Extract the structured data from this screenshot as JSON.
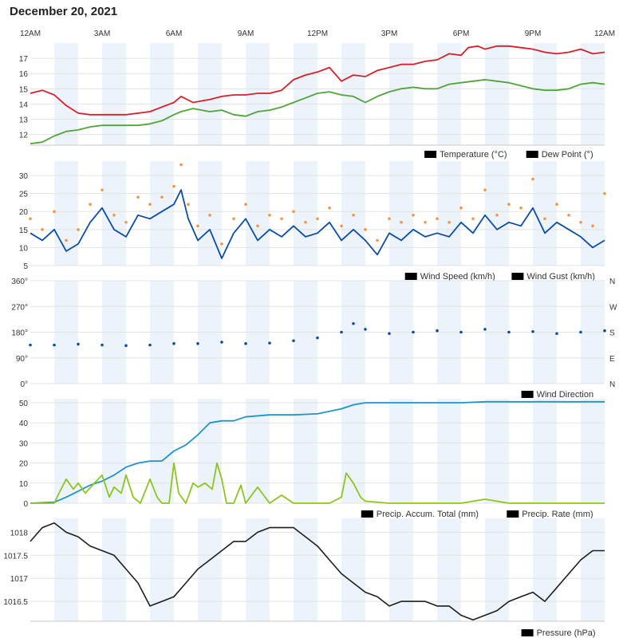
{
  "page": {
    "title": "December 20, 2021"
  },
  "time_axis": {
    "labels": [
      "12AM",
      "3AM",
      "6AM",
      "9AM",
      "12PM",
      "3PM",
      "6PM",
      "9PM",
      "12AM"
    ]
  },
  "colors": {
    "temperature": "#d7202a",
    "dew_point": "#4fa43a",
    "wind_speed": "#0b4ea2",
    "wind_gust": "#f59442",
    "wind_direction": "#0b4ea2",
    "precip_total": "#1f94c7",
    "precip_rate": "#8dc51f",
    "pressure": "#1e1e1e",
    "band": "#edf3fa",
    "grid": "#e3e3e3"
  },
  "chart_data": [
    {
      "type": "line",
      "x_unit": "hours",
      "ylim": [
        11.3,
        18.0
      ],
      "y_ticks": [
        "12",
        "13",
        "14",
        "15",
        "16",
        "17"
      ],
      "series": [
        {
          "name": "Temperature (°C)",
          "x": [
            0,
            0.5,
            1,
            1.5,
            2,
            2.5,
            3,
            4,
            5,
            5.5,
            6,
            6.3,
            6.8,
            7.5,
            8,
            8.5,
            9,
            9.5,
            10,
            10.5,
            11,
            11.5,
            12,
            12.5,
            13,
            13.5,
            14,
            14.5,
            15,
            15.5,
            16,
            16.5,
            17,
            17.5,
            18,
            18.3,
            18.7,
            19,
            19.5,
            20,
            20.5,
            21,
            21.5,
            22,
            22.5,
            23,
            23.5,
            24
          ],
          "values": [
            14.7,
            14.9,
            14.6,
            13.9,
            13.4,
            13.3,
            13.3,
            13.3,
            13.5,
            13.8,
            14.1,
            14.5,
            14.1,
            14.3,
            14.5,
            14.6,
            14.6,
            14.7,
            14.7,
            14.9,
            15.6,
            15.9,
            16.1,
            16.4,
            15.5,
            15.9,
            15.8,
            16.2,
            16.4,
            16.6,
            16.6,
            16.8,
            16.9,
            17.3,
            17.2,
            17.7,
            17.8,
            17.6,
            17.8,
            17.8,
            17.7,
            17.6,
            17.4,
            17.3,
            17.4,
            17.6,
            17.3,
            17.4
          ]
        },
        {
          "name": "Dew Point (°)",
          "x": [
            0,
            0.5,
            1,
            1.5,
            2,
            2.5,
            3,
            3.5,
            4,
            4.5,
            5,
            5.5,
            6,
            6.3,
            6.8,
            7.5,
            8,
            8.5,
            9,
            9.5,
            10,
            10.5,
            11,
            11.5,
            12,
            12.5,
            13,
            13.5,
            14,
            14.5,
            15,
            15.5,
            16,
            16.5,
            17,
            17.5,
            18,
            18.5,
            19,
            19.5,
            20,
            20.5,
            21,
            21.5,
            22,
            22.5,
            23,
            23.5,
            24
          ],
          "values": [
            11.4,
            11.5,
            11.9,
            12.2,
            12.3,
            12.5,
            12.6,
            12.6,
            12.6,
            12.6,
            12.7,
            12.9,
            13.3,
            13.5,
            13.7,
            13.5,
            13.6,
            13.3,
            13.2,
            13.5,
            13.6,
            13.8,
            14.1,
            14.4,
            14.7,
            14.8,
            14.6,
            14.5,
            14.1,
            14.5,
            14.8,
            15.0,
            15.1,
            15.0,
            15.0,
            15.3,
            15.4,
            15.5,
            15.6,
            15.5,
            15.4,
            15.2,
            15.0,
            14.9,
            14.9,
            15.0,
            15.3,
            15.4,
            15.3
          ]
        }
      ],
      "legend": [
        "Temperature (°C)",
        "Dew Point (°)"
      ]
    },
    {
      "type": "line",
      "x_unit": "hours",
      "ylim": [
        5,
        34
      ],
      "y_ticks": [
        "5",
        "10",
        "15",
        "20",
        "25",
        "30"
      ],
      "series": [
        {
          "name": "Wind Speed (km/h)",
          "x": [
            0,
            0.5,
            1,
            1.5,
            2,
            2.5,
            3,
            3.5,
            4,
            4.5,
            5,
            5.5,
            6,
            6.3,
            6.6,
            7,
            7.5,
            8,
            8.5,
            9,
            9.5,
            10,
            10.5,
            11,
            11.5,
            12,
            12.5,
            13,
            13.5,
            14,
            14.5,
            15,
            15.5,
            16,
            16.5,
            17,
            17.5,
            18,
            18.5,
            19,
            19.5,
            20,
            20.5,
            21,
            21.5,
            22,
            22.5,
            23,
            23.5,
            24
          ],
          "values": [
            14,
            12,
            15,
            9,
            11,
            17,
            21,
            15,
            13,
            19,
            18,
            20,
            22,
            26,
            18,
            12,
            15,
            7,
            14,
            18,
            12,
            15,
            13,
            16,
            13,
            14,
            17,
            12,
            15,
            12,
            8,
            14,
            12,
            15,
            13,
            14,
            13,
            17,
            14,
            19,
            15,
            17,
            16,
            21,
            14,
            17,
            15,
            13,
            10,
            12
          ]
        },
        {
          "name": "Wind Gust (km/h)",
          "x": [
            0,
            0.5,
            1,
            1.5,
            2,
            2.5,
            3,
            3.5,
            4,
            4.5,
            5,
            5.5,
            6,
            6.3,
            6.6,
            7,
            7.5,
            8,
            8.5,
            9,
            9.5,
            10,
            10.5,
            11,
            11.5,
            12,
            12.5,
            13,
            13.5,
            14,
            14.5,
            15,
            15.5,
            16,
            16.5,
            17,
            17.5,
            18,
            18.5,
            19,
            19.5,
            20,
            20.5,
            21,
            21.5,
            22,
            22.5,
            23,
            23.5,
            24
          ],
          "values": [
            18,
            15,
            20,
            12,
            15,
            22,
            26,
            19,
            17,
            24,
            22,
            24,
            27,
            33,
            22,
            16,
            19,
            11,
            18,
            22,
            16,
            19,
            18,
            20,
            17,
            18,
            21,
            16,
            19,
            15,
            12,
            18,
            17,
            19,
            17,
            18,
            17,
            21,
            18,
            26,
            19,
            22,
            21,
            29,
            18,
            22,
            19,
            17,
            16,
            25
          ]
        }
      ],
      "legend": [
        "Wind Speed (km/h)",
        "Wind Gust (km/h)"
      ]
    },
    {
      "type": "scatter",
      "x_unit": "hours",
      "ylim": [
        0,
        360
      ],
      "y_ticks": [
        "0°",
        "90°",
        "180°",
        "270°",
        "360°"
      ],
      "right_ticks": [
        "N",
        "E",
        "S",
        "W",
        "N"
      ],
      "series": [
        {
          "name": "Wind Direction",
          "x": [
            0,
            1,
            2,
            3,
            4,
            5,
            6,
            7,
            8,
            9,
            10,
            11,
            12,
            13,
            13.5,
            14,
            15,
            16,
            17,
            18,
            19,
            20,
            21,
            22,
            23,
            24
          ],
          "values": [
            135,
            135,
            138,
            135,
            133,
            135,
            140,
            140,
            145,
            140,
            142,
            150,
            160,
            180,
            210,
            190,
            175,
            180,
            185,
            180,
            190,
            180,
            182,
            175,
            180,
            185
          ]
        }
      ],
      "legend": [
        "Wind Direction"
      ]
    },
    {
      "type": "line",
      "x_unit": "hours",
      "ylim": [
        0,
        52
      ],
      "y_ticks": [
        "0",
        "10",
        "20",
        "30",
        "40",
        "50"
      ],
      "series": [
        {
          "name": "Precip. Accum. Total (mm)",
          "x": [
            0,
            1,
            1.5,
            2,
            2.5,
            3,
            3.5,
            4,
            4.5,
            5,
            5.5,
            6,
            6.5,
            7,
            7.5,
            8,
            8.5,
            9,
            10,
            11,
            12,
            13,
            13.5,
            14,
            15,
            16,
            17,
            18,
            19,
            20,
            21,
            22,
            23,
            24
          ],
          "values": [
            0,
            0.5,
            3,
            6,
            9,
            11,
            14,
            18,
            20,
            21,
            21,
            26,
            29,
            34,
            40,
            41,
            41,
            43,
            44,
            44,
            44.5,
            47,
            49,
            50,
            50,
            50,
            50,
            50,
            50.5,
            50.5,
            50.5,
            50.5,
            50.5,
            50.5
          ]
        },
        {
          "name": "Precip. Rate (mm)",
          "x": [
            0,
            1,
            1.2,
            1.5,
            1.8,
            2,
            2.3,
            2.6,
            3,
            3.3,
            3.5,
            3.8,
            4,
            4.3,
            4.6,
            5,
            5.3,
            5.5,
            5.8,
            6,
            6.2,
            6.5,
            6.8,
            7,
            7.3,
            7.6,
            7.8,
            8,
            8.2,
            8.5,
            8.8,
            9,
            9.5,
            10,
            10.5,
            11,
            11.5,
            12,
            12.5,
            13,
            13.2,
            13.5,
            13.8,
            14,
            15,
            16,
            18,
            19,
            20,
            24
          ],
          "values": [
            0,
            0,
            5,
            12,
            7,
            10,
            5,
            9,
            14,
            3,
            8,
            5,
            14,
            3,
            0,
            12,
            3,
            0,
            0,
            20,
            5,
            0,
            10,
            8,
            10,
            7,
            20,
            12,
            0,
            0,
            9,
            0,
            8,
            0,
            4,
            0,
            0,
            0,
            0,
            3,
            15,
            10,
            3,
            1,
            0,
            0,
            0,
            2,
            0,
            0
          ]
        }
      ],
      "legend": [
        "Precip. Accum. Total (mm)",
        "Precip. Rate (mm)"
      ]
    },
    {
      "type": "line",
      "x_unit": "hours",
      "ylim": [
        1016.07,
        1018.3
      ],
      "y_ticks": [
        "1016.5",
        "1017",
        "1017.5",
        "1018"
      ],
      "series": [
        {
          "name": "Pressure (hPa)",
          "x": [
            0,
            0.5,
            1,
            1.5,
            2,
            2.5,
            3,
            3.5,
            4,
            4.5,
            5,
            5.5,
            6,
            6.5,
            7,
            7.5,
            8,
            8.5,
            9,
            9.5,
            10,
            10.5,
            11,
            11.5,
            12,
            12.5,
            13,
            13.5,
            14,
            14.5,
            15,
            15.5,
            16,
            16.5,
            17,
            17.5,
            18,
            18.5,
            19,
            19.5,
            20,
            20.5,
            21,
            21.5,
            22,
            22.5,
            23,
            23.5,
            24
          ],
          "values": [
            1017.8,
            1018.1,
            1018.2,
            1018.0,
            1017.9,
            1017.7,
            1017.6,
            1017.5,
            1017.2,
            1016.9,
            1016.4,
            1016.5,
            1016.6,
            1016.9,
            1017.2,
            1017.4,
            1017.6,
            1017.8,
            1017.8,
            1018.0,
            1018.1,
            1018.1,
            1018.1,
            1017.9,
            1017.7,
            1017.4,
            1017.1,
            1016.9,
            1016.7,
            1016.6,
            1016.4,
            1016.5,
            1016.5,
            1016.5,
            1016.4,
            1016.4,
            1016.2,
            1016.1,
            1016.2,
            1016.3,
            1016.5,
            1016.6,
            1016.7,
            1016.5,
            1016.8,
            1017.1,
            1017.4,
            1017.6,
            1017.6
          ]
        }
      ],
      "legend": [
        "Pressure (hPa)"
      ]
    }
  ]
}
